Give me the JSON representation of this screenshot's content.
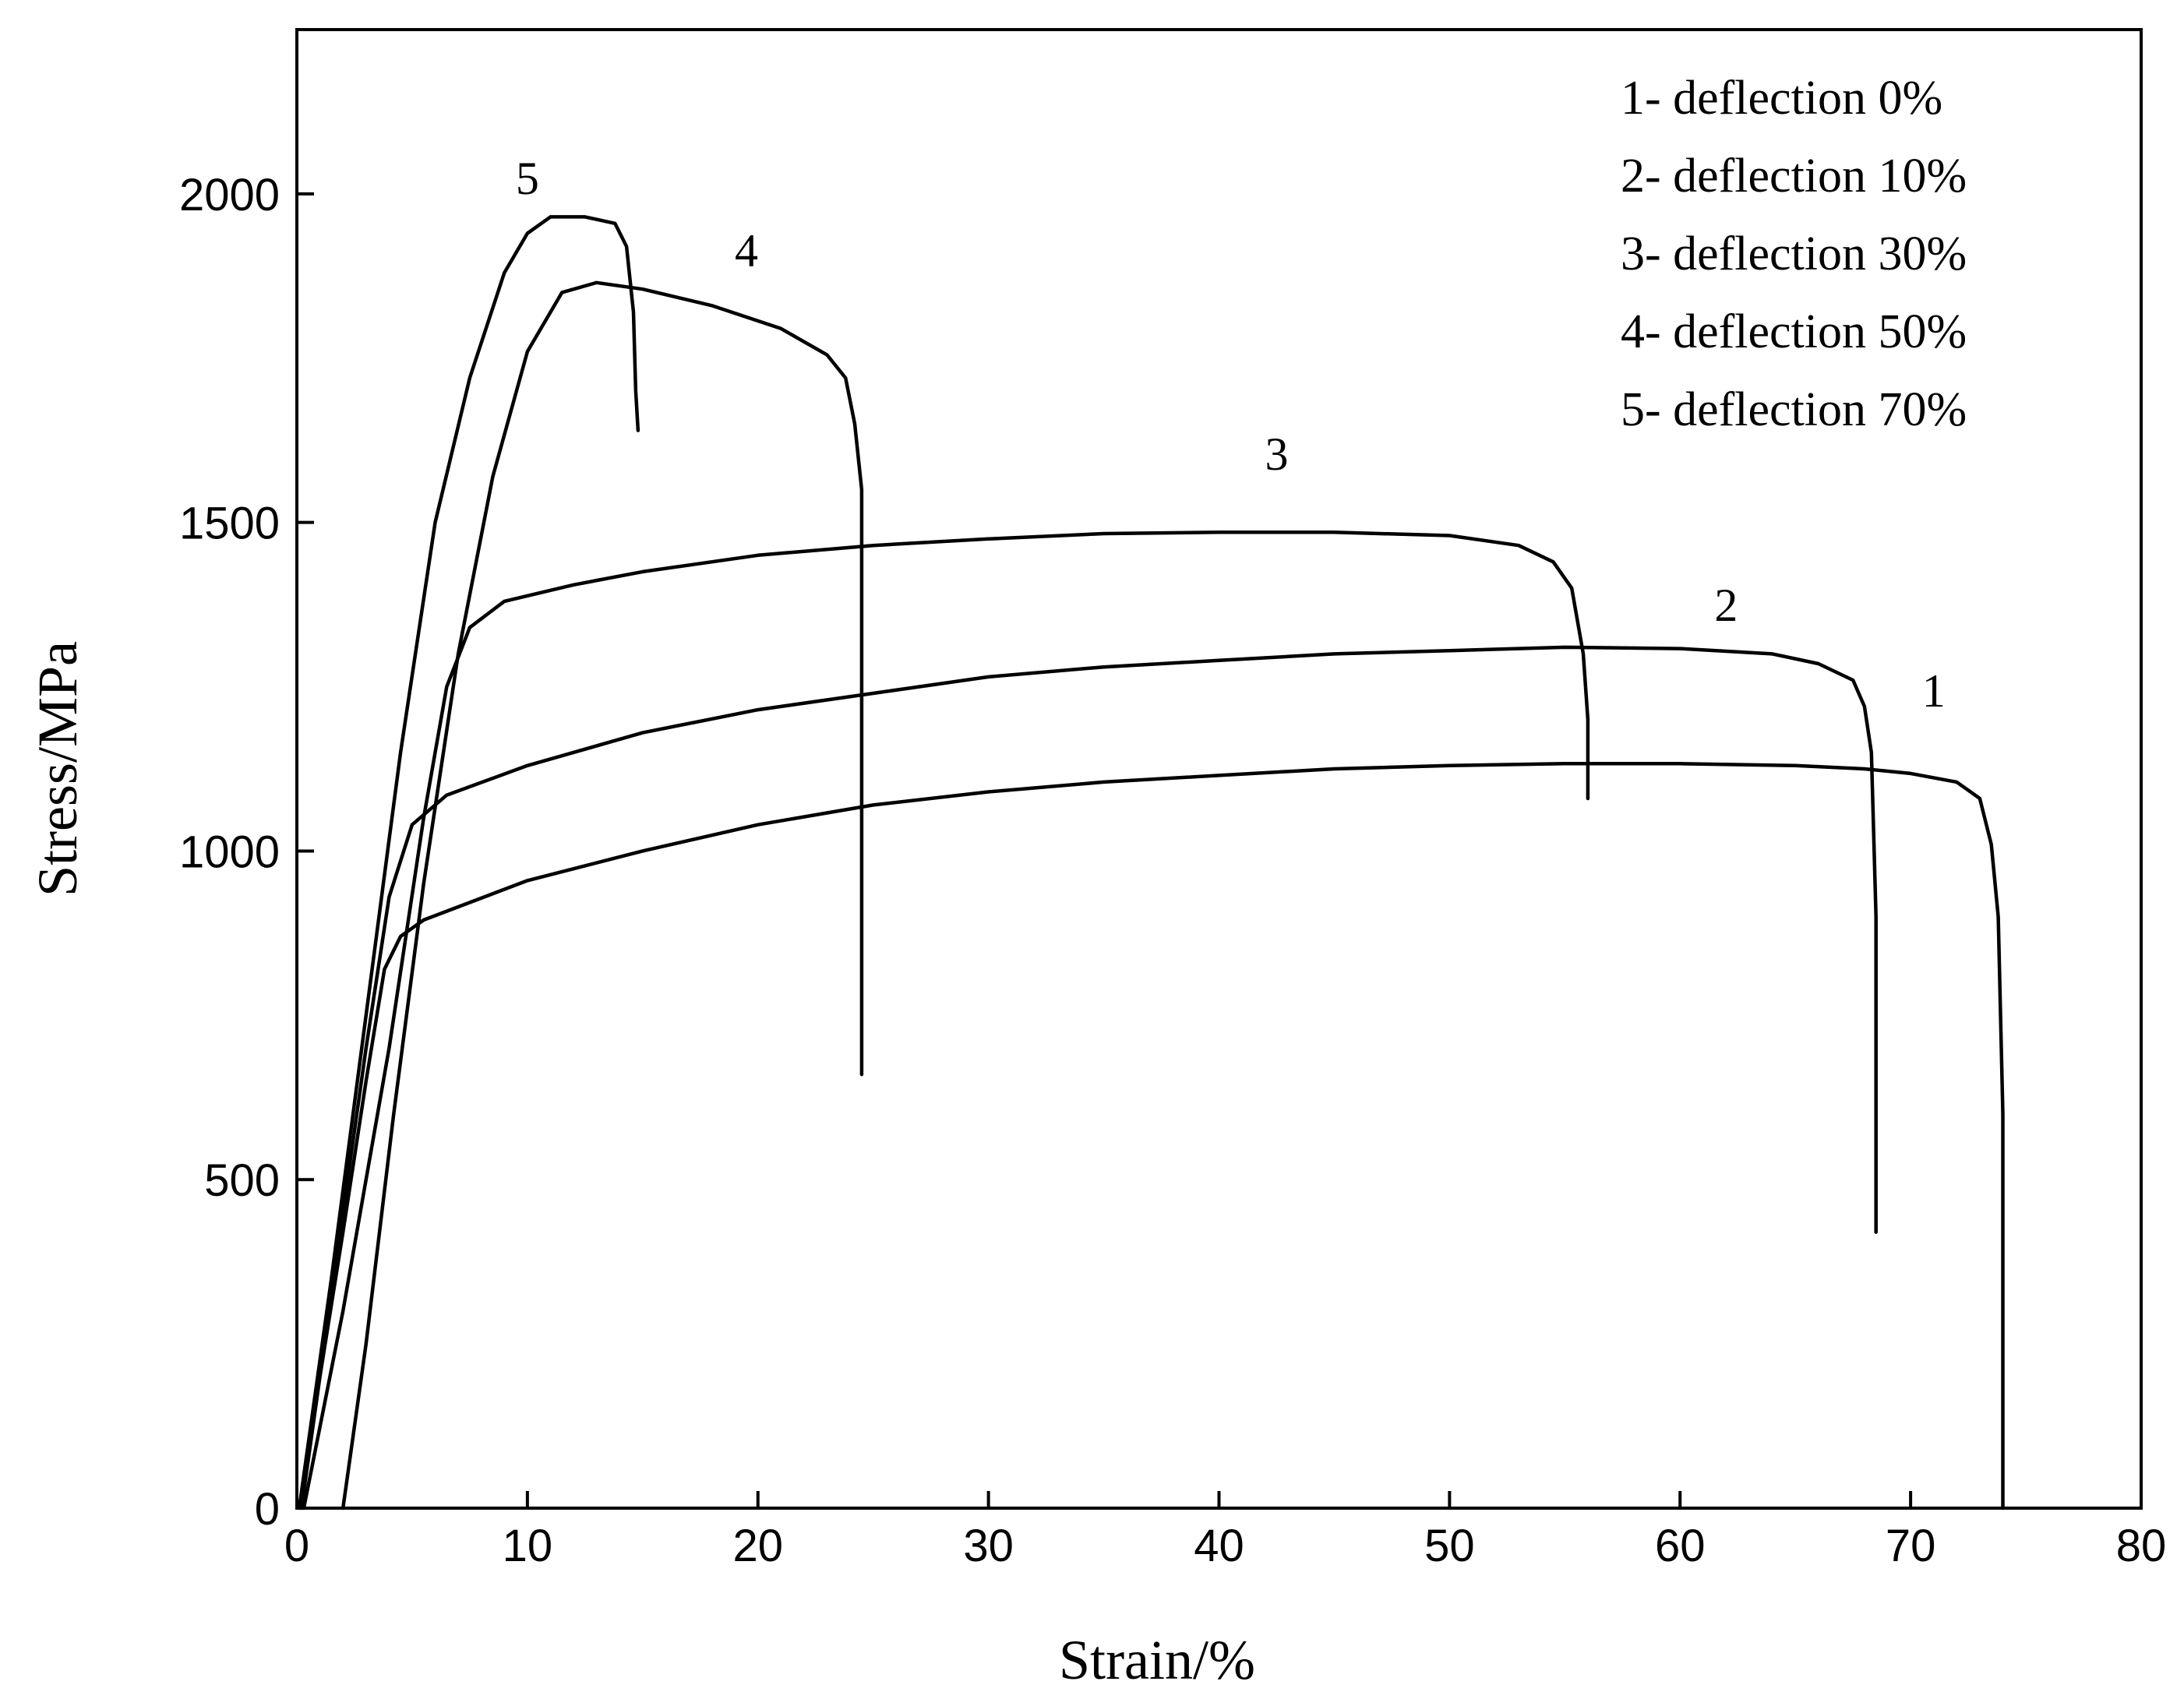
{
  "chart_data": {
    "type": "line",
    "title": "",
    "xlabel": "Strain/%",
    "ylabel": "Stress/MPa",
    "xlim": [
      0,
      80
    ],
    "ylim": [
      0,
      2250
    ],
    "xticks": [
      0,
      10,
      20,
      30,
      40,
      50,
      60,
      70,
      80
    ],
    "yticks": [
      0,
      500,
      1000,
      1500,
      2000
    ],
    "grid": false,
    "legend_position": "top-right",
    "legend": [
      "1- deflection 0%",
      "2- deflection 10%",
      "3- deflection 30%",
      "4- deflection 50%",
      "5- deflection 70%"
    ],
    "series": [
      {
        "name": "1- deflection 0%",
        "label": "1",
        "label_at": [
          71,
          1220
        ],
        "points": [
          [
            0.2,
            0
          ],
          [
            1,
            200
          ],
          [
            2,
            420
          ],
          [
            3,
            650
          ],
          [
            3.8,
            820
          ],
          [
            4.5,
            870
          ],
          [
            5.5,
            895
          ],
          [
            7,
            915
          ],
          [
            10,
            955
          ],
          [
            15,
            1000
          ],
          [
            20,
            1040
          ],
          [
            25,
            1070
          ],
          [
            30,
            1090
          ],
          [
            35,
            1105
          ],
          [
            40,
            1115
          ],
          [
            45,
            1125
          ],
          [
            50,
            1130
          ],
          [
            55,
            1133
          ],
          [
            60,
            1133
          ],
          [
            65,
            1130
          ],
          [
            68,
            1125
          ],
          [
            70,
            1118
          ],
          [
            72,
            1105
          ],
          [
            73,
            1080
          ],
          [
            73.5,
            1010
          ],
          [
            73.8,
            900
          ],
          [
            74,
            600
          ],
          [
            74,
            0
          ]
        ]
      },
      {
        "name": "2- deflection 10%",
        "label": "2",
        "label_at": [
          62,
          1350
        ],
        "points": [
          [
            0.2,
            0
          ],
          [
            1,
            220
          ],
          [
            2,
            450
          ],
          [
            3,
            700
          ],
          [
            4,
            930
          ],
          [
            5,
            1040
          ],
          [
            6.5,
            1085
          ],
          [
            10,
            1130
          ],
          [
            15,
            1180
          ],
          [
            20,
            1215
          ],
          [
            25,
            1240
          ],
          [
            30,
            1265
          ],
          [
            35,
            1280
          ],
          [
            40,
            1290
          ],
          [
            45,
            1300
          ],
          [
            50,
            1305
          ],
          [
            55,
            1310
          ],
          [
            60,
            1308
          ],
          [
            64,
            1300
          ],
          [
            66,
            1285
          ],
          [
            67.5,
            1260
          ],
          [
            68,
            1220
          ],
          [
            68.3,
            1150
          ],
          [
            68.5,
            900
          ],
          [
            68.5,
            420
          ]
        ]
      },
      {
        "name": "3- deflection 30%",
        "label": "3",
        "label_at": [
          42.5,
          1580
        ],
        "points": [
          [
            0.3,
            0
          ],
          [
            2,
            300
          ],
          [
            4,
            700
          ],
          [
            5.5,
            1050
          ],
          [
            6.5,
            1250
          ],
          [
            7.5,
            1340
          ],
          [
            9,
            1380
          ],
          [
            12,
            1405
          ],
          [
            15,
            1425
          ],
          [
            20,
            1450
          ],
          [
            25,
            1465
          ],
          [
            30,
            1475
          ],
          [
            35,
            1483
          ],
          [
            40,
            1485
          ],
          [
            45,
            1485
          ],
          [
            50,
            1480
          ],
          [
            53,
            1465
          ],
          [
            54.5,
            1440
          ],
          [
            55.3,
            1400
          ],
          [
            55.8,
            1300
          ],
          [
            56,
            1200
          ],
          [
            56,
            1080
          ]
        ]
      },
      {
        "name": "4- deflection 50%",
        "label": "4",
        "label_at": [
          19.5,
          1890
        ],
        "points": [
          [
            2,
            0
          ],
          [
            3,
            250
          ],
          [
            4.2,
            600
          ],
          [
            5.5,
            950
          ],
          [
            7,
            1300
          ],
          [
            8.5,
            1570
          ],
          [
            10,
            1760
          ],
          [
            11.5,
            1850
          ],
          [
            13,
            1865
          ],
          [
            15,
            1855
          ],
          [
            18,
            1830
          ],
          [
            21,
            1795
          ],
          [
            23,
            1755
          ],
          [
            23.8,
            1720
          ],
          [
            24.2,
            1650
          ],
          [
            24.5,
            1550
          ],
          [
            24.5,
            1000
          ],
          [
            24.5,
            660
          ]
        ]
      },
      {
        "name": "5- deflection 70%",
        "label": "5",
        "label_at": [
          10,
          2000
        ],
        "points": [
          [
            0.1,
            0
          ],
          [
            1.5,
            350
          ],
          [
            3,
            750
          ],
          [
            4.5,
            1150
          ],
          [
            6,
            1500
          ],
          [
            7.5,
            1720
          ],
          [
            9,
            1880
          ],
          [
            10,
            1940
          ],
          [
            11,
            1965
          ],
          [
            12.5,
            1965
          ],
          [
            13.8,
            1955
          ],
          [
            14.3,
            1920
          ],
          [
            14.6,
            1820
          ],
          [
            14.7,
            1700
          ],
          [
            14.8,
            1640
          ]
        ]
      }
    ]
  }
}
